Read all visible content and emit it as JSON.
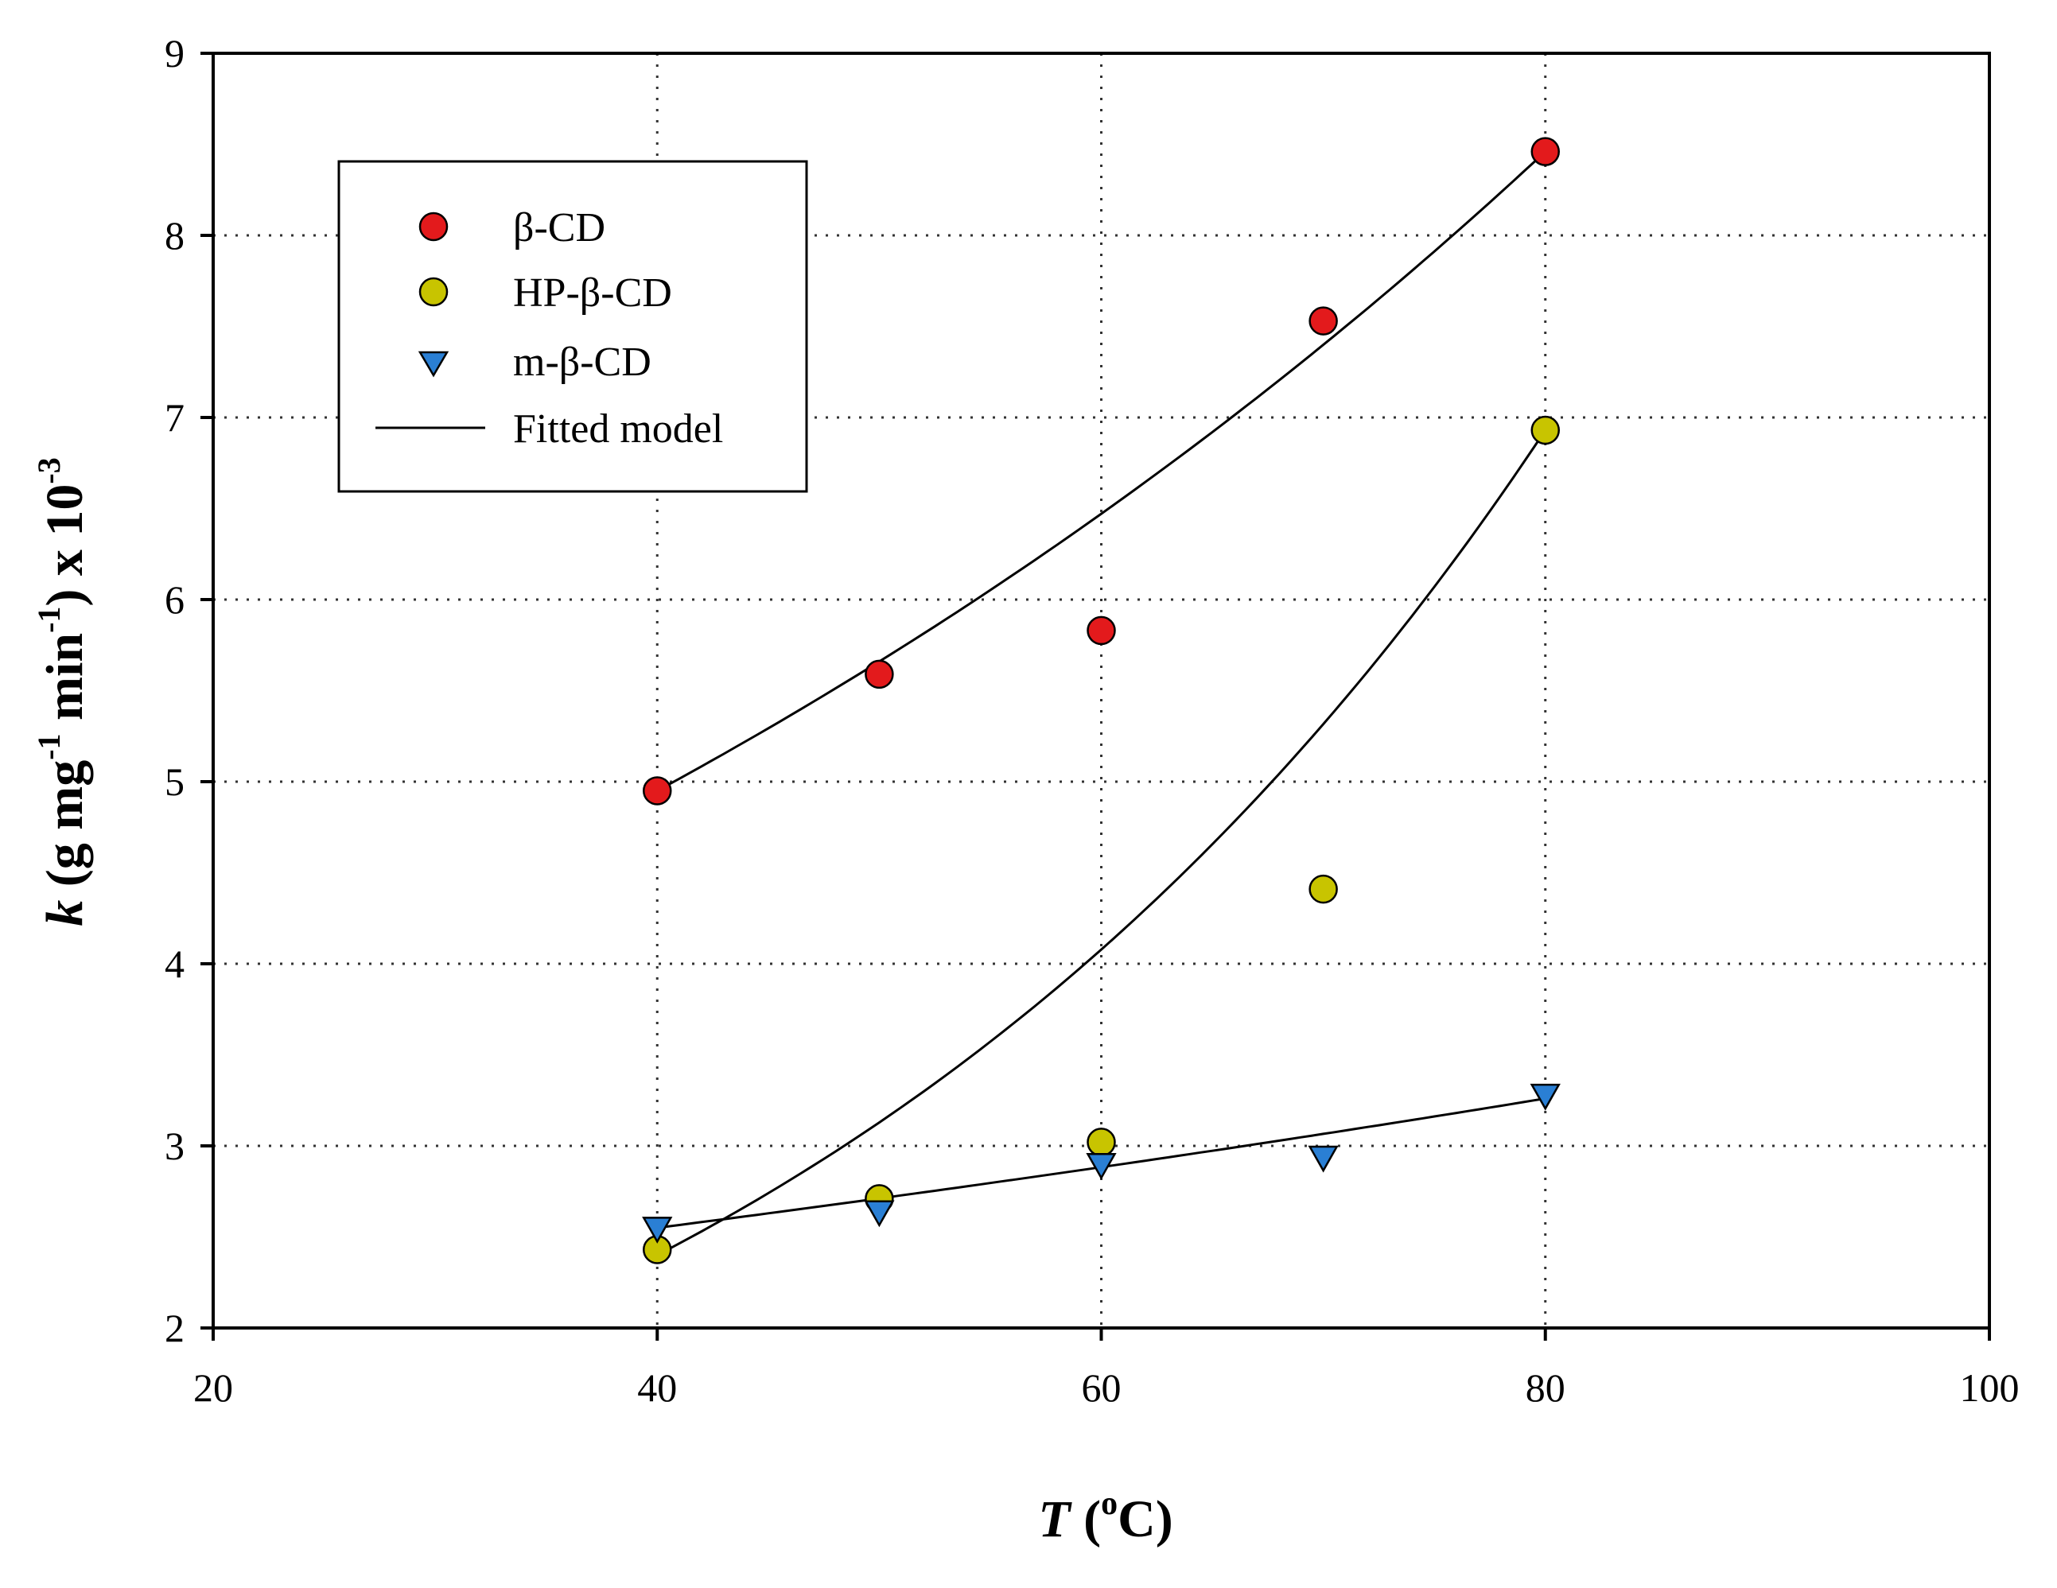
{
  "chart_data": {
    "type": "scatter",
    "title": "",
    "xlabel": "T (oC)",
    "ylabel": "k (g mg-1 min-1) x 10-3",
    "xlabel_parts": {
      "var": "T",
      "open": " (",
      "sup": "o",
      "unit": "C)"
    },
    "ylabel_parts": {
      "var": "k",
      "pre": " (g mg",
      "sup1": "-1",
      "mid": " min",
      "sup2": "-1",
      "post": ") x 10",
      "sup3": "-3"
    },
    "xlim": [
      20,
      100
    ],
    "ylim": [
      2,
      9
    ],
    "xticks": [
      20,
      40,
      60,
      80,
      100
    ],
    "yticks": [
      2,
      3,
      4,
      5,
      6,
      7,
      8,
      9
    ],
    "grid": true,
    "legend_position": "top-left",
    "series": [
      {
        "name": "β-CD",
        "marker": "circle",
        "color": "#e31a1c",
        "x": [
          40,
          50,
          60,
          70,
          80
        ],
        "y": [
          4.95,
          5.59,
          5.83,
          7.53,
          8.46
        ],
        "fit": {
          "model": "exponential",
          "x": [
            40,
            80
          ],
          "y": [
            4.95,
            8.46
          ]
        }
      },
      {
        "name": "HP-β-CD",
        "marker": "circle",
        "color": "#c8c400",
        "x": [
          40,
          50,
          60,
          70,
          80
        ],
        "y": [
          2.43,
          2.71,
          3.02,
          4.41,
          6.93
        ],
        "fit": {
          "model": "exponential",
          "x": [
            40,
            80
          ],
          "y": [
            2.4,
            6.93
          ]
        }
      },
      {
        "name": "m-β-CD",
        "marker": "triangle-down",
        "color": "#2a7fd4",
        "x": [
          40,
          50,
          60,
          70,
          80
        ],
        "y": [
          2.54,
          2.63,
          2.89,
          2.93,
          3.27
        ],
        "fit": {
          "model": "exponential",
          "x": [
            40,
            80
          ],
          "y": [
            2.55,
            3.26
          ]
        }
      }
    ],
    "legend": {
      "entries": [
        "β-CD",
        "HP-β-CD",
        "m-β-CD",
        "Fitted model"
      ]
    }
  }
}
